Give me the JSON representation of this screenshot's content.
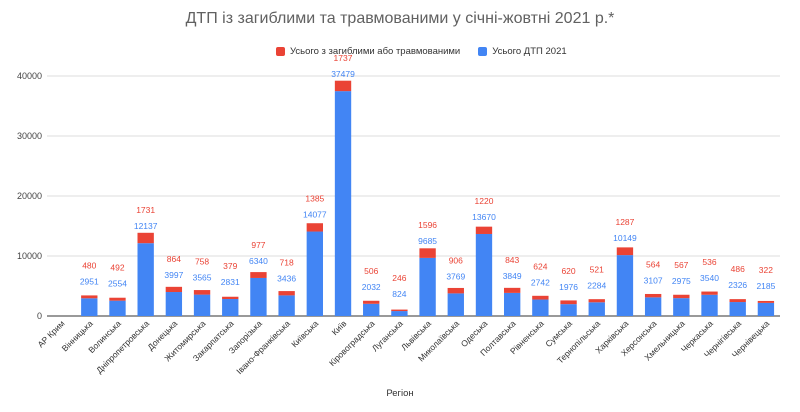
{
  "chart_data": {
    "type": "bar",
    "stacked": true,
    "title": "ДТП із загиблими та травмованими у січні-жовтні 2021 р.*",
    "xlabel": "Регіон",
    "ylabel": "",
    "ylim": [
      0,
      40000
    ],
    "yticks": [
      "0",
      "10000",
      "20000",
      "30000",
      "40000"
    ],
    "grid": true,
    "legend_position": "top",
    "categories": [
      "АР Крим",
      "Вінницька",
      "Волинська",
      "Дніпропетровська",
      "Донецька",
      "Житомирська",
      "Закарпатська",
      "Запорізька",
      "Івано-Франківська",
      "Київська",
      "Київ",
      "Кіровоградська",
      "Луганська",
      "Львівська",
      "Миколаївська",
      "Одеська",
      "Полтавська",
      "Рівненська",
      "Сумська",
      "Тернопільська",
      "Харківська",
      "Херсонська",
      "Хмельницька",
      "Черкаська",
      "Чернігівська",
      "Чернівецька"
    ],
    "series": [
      {
        "name": "Усього з загиблими або травмованими",
        "color": "#ea4335",
        "values": [
          null,
          480,
          492,
          1731,
          864,
          758,
          379,
          977,
          718,
          1385,
          1737,
          506,
          246,
          1596,
          906,
          1220,
          843,
          624,
          620,
          521,
          1287,
          564,
          567,
          536,
          486,
          322
        ]
      },
      {
        "name": "Усього ДТП 2021",
        "color": "#4285f4",
        "values": [
          null,
          2951,
          2554,
          12137,
          3997,
          3565,
          2831,
          6340,
          3436,
          14077,
          37479,
          2032,
          824,
          9685,
          3769,
          13670,
          3849,
          2742,
          1976,
          2284,
          10149,
          3107,
          2975,
          3540,
          2326,
          2185
        ]
      }
    ]
  }
}
